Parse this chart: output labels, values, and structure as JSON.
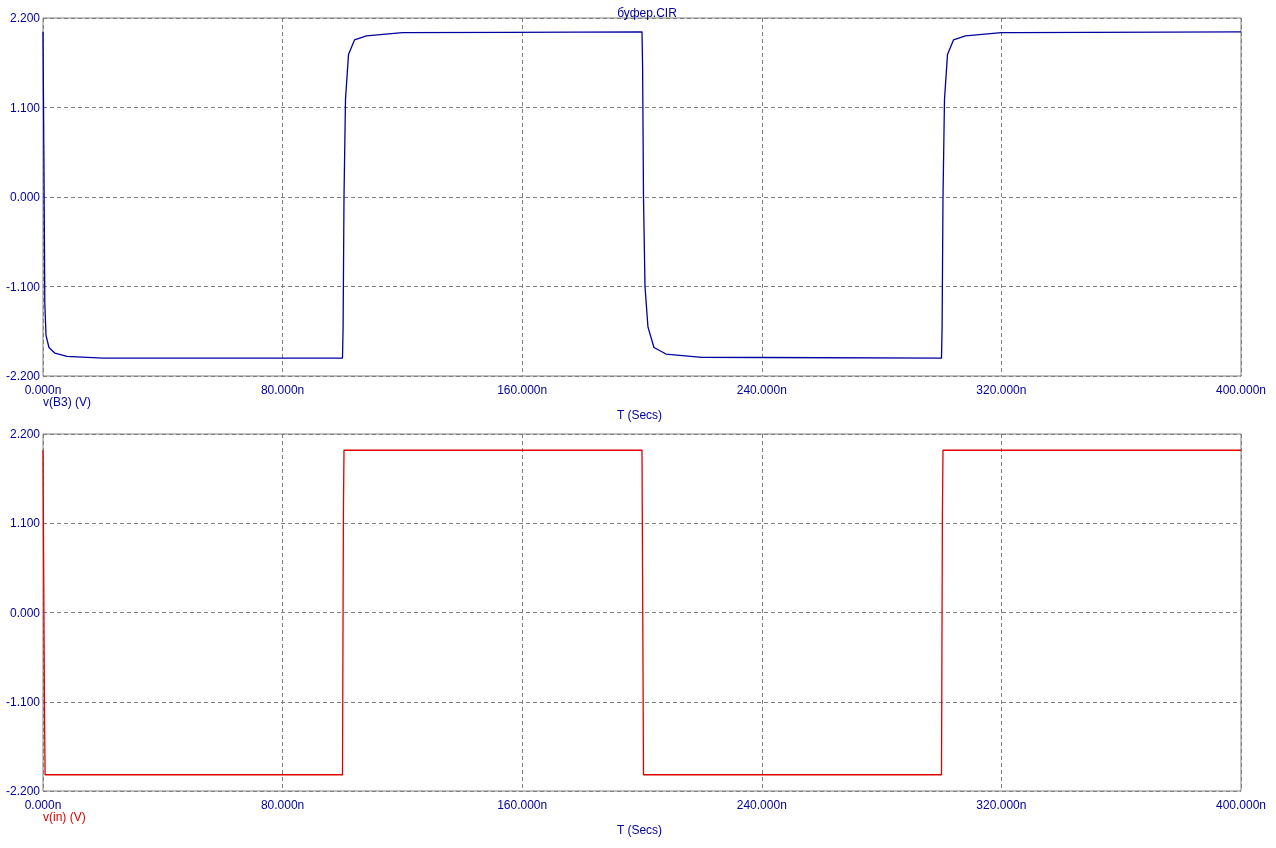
{
  "chart_data": [
    {
      "type": "line",
      "title": "буфер.CIR",
      "xlabel": "T (Secs)",
      "xlim": [
        0,
        400
      ],
      "xticks": [
        {
          "value": 0,
          "label": "0.000n"
        },
        {
          "value": 80,
          "label": "80.000n"
        },
        {
          "value": 160,
          "label": "160.000n"
        },
        {
          "value": 240,
          "label": "240.000n"
        },
        {
          "value": 320,
          "label": "320.000n"
        },
        {
          "value": 400,
          "label": "400.000n"
        }
      ],
      "ylim": [
        -2.2,
        2.2
      ],
      "yticks": [
        {
          "value": -2.2,
          "label": "-2.200"
        },
        {
          "value": -1.1,
          "label": "-1.100"
        },
        {
          "value": 0,
          "label": "0.000"
        },
        {
          "value": 1.1,
          "label": "1.100"
        },
        {
          "value": 2.2,
          "label": "2.200"
        }
      ],
      "grid": true,
      "marker": "none",
      "series": [
        {
          "name": "v(B3) (V)",
          "color": "#0000a0",
          "x": [
            0,
            0.3,
            0.6,
            1,
            2,
            4,
            8,
            20,
            100,
            100.2,
            100.5,
            101,
            102,
            104,
            108,
            120,
            200,
            200.2,
            200.5,
            201,
            202,
            204,
            208,
            220,
            300,
            300.2,
            300.5,
            301,
            302,
            304,
            308,
            320,
            400
          ],
          "values": [
            2.03,
            0.5,
            -1.3,
            -1.7,
            -1.85,
            -1.92,
            -1.96,
            -1.98,
            -1.98,
            -1.6,
            0,
            1.2,
            1.75,
            1.93,
            1.98,
            2.02,
            2.03,
            1.6,
            0,
            -1.1,
            -1.6,
            -1.85,
            -1.93,
            -1.97,
            -1.98,
            -1.6,
            0,
            1.2,
            1.75,
            1.93,
            1.98,
            2.02,
            2.03
          ]
        }
      ]
    },
    {
      "type": "line",
      "xlabel": "T (Secs)",
      "xlim": [
        0,
        400
      ],
      "xticks": [
        {
          "value": 0,
          "label": "0.000n"
        },
        {
          "value": 80,
          "label": "80.000n"
        },
        {
          "value": 160,
          "label": "160.000n"
        },
        {
          "value": 240,
          "label": "240.000n"
        },
        {
          "value": 320,
          "label": "320.000n"
        },
        {
          "value": 400,
          "label": "400.000n"
        }
      ],
      "ylim": [
        -2.2,
        2.2
      ],
      "yticks": [
        {
          "value": -2.2,
          "label": "-2.200"
        },
        {
          "value": -1.1,
          "label": "-1.100"
        },
        {
          "value": 0,
          "label": "0.000"
        },
        {
          "value": 1.1,
          "label": "1.100"
        },
        {
          "value": 2.2,
          "label": "2.200"
        }
      ],
      "grid": true,
      "marker": "none",
      "series": [
        {
          "name": "v(in) (V)",
          "color": "#e00000",
          "x": [
            0,
            0.5,
            0.7,
            100,
            100.3,
            100.5,
            200,
            200.5,
            300,
            300.3,
            300.5,
            400
          ],
          "values": [
            2.0,
            -1.2,
            -2.0,
            -2.0,
            1.2,
            2.0,
            2.0,
            -2.0,
            -2.0,
            1.2,
            2.0,
            2.0
          ]
        }
      ]
    }
  ]
}
